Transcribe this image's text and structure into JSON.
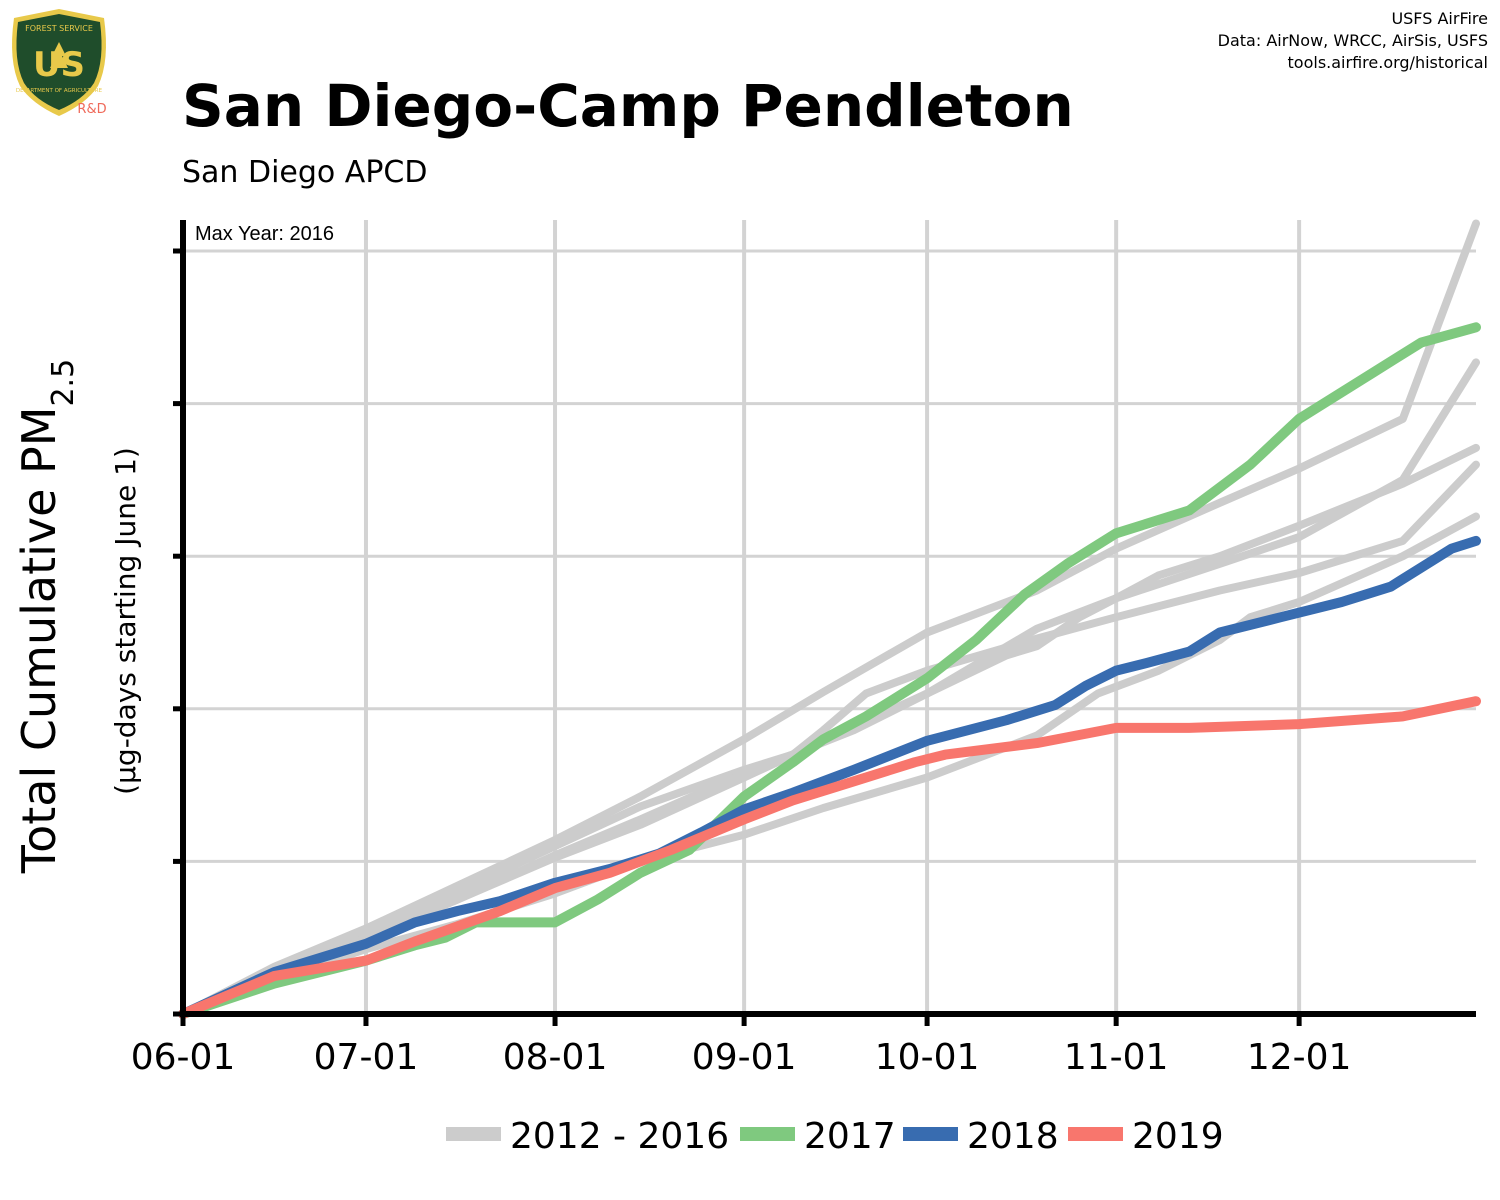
{
  "header": {
    "title": "San Diego-Camp Pendleton",
    "subtitle": "San Diego APCD",
    "credits": [
      "USFS AirFire",
      "Data: AirNow, WRCC, AirSis, USFS",
      "tools.airfire.org/historical"
    ]
  },
  "logo": {
    "top_text": "FOREST SERVICE",
    "letters": "US",
    "bottom_text": "DEPARTMENT OF AGRICULTURE",
    "tag": "R&D",
    "colors": {
      "shield": "#1f4d2b",
      "trim": "#e8c94a",
      "tag": "#ef6a5a"
    }
  },
  "chart_data": {
    "type": "line",
    "title": "San Diego-Camp Pendleton",
    "subtitle": "San Diego APCD",
    "ylabel_main": "Total Cumulative PM",
    "ylabel_sub": "2.5",
    "ylabel_units": "(µg-days starting June 1)",
    "annotation": "Max Year: 2016",
    "x_unit": "days since June 1",
    "xlim": [
      0,
      212
    ],
    "ylim": [
      0,
      1000
    ],
    "y_ticks": [
      0,
      200,
      400,
      600,
      800,
      1000
    ],
    "y_tick_labels_shown": false,
    "x_ticks": [
      {
        "day": 0,
        "label": "06-01"
      },
      {
        "day": 30,
        "label": "07-01"
      },
      {
        "day": 61,
        "label": "08-01"
      },
      {
        "day": 92,
        "label": "09-01"
      },
      {
        "day": 122,
        "label": "10-01"
      },
      {
        "day": 153,
        "label": "11-01"
      },
      {
        "day": 183,
        "label": "12-01"
      }
    ],
    "grid": true,
    "legend_position": "bottom",
    "legend": [
      {
        "label": "2012 - 2016",
        "color": "#cccccc"
      },
      {
        "label": "2017",
        "color": "#7fc97f"
      },
      {
        "label": "2018",
        "color": "#386cb0"
      },
      {
        "label": "2019",
        "color": "#f8766d"
      }
    ],
    "series": [
      {
        "name": "2012 - 2016",
        "color": "#cccccc",
        "points": [
          [
            0,
            0
          ],
          [
            15,
            62
          ],
          [
            30,
            112
          ],
          [
            45,
            168
          ],
          [
            61,
            228
          ],
          [
            75,
            285
          ],
          [
            92,
            360
          ],
          [
            105,
            422
          ],
          [
            122,
            500
          ],
          [
            140,
            555
          ],
          [
            153,
            610
          ],
          [
            170,
            670
          ],
          [
            183,
            715
          ],
          [
            200,
            780
          ],
          [
            212,
            1036
          ]
        ]
      },
      {
        "name": "2012 - 2016",
        "color": "#cccccc",
        "points": [
          [
            0,
            0
          ],
          [
            15,
            55
          ],
          [
            30,
            100
          ],
          [
            45,
            150
          ],
          [
            61,
            205
          ],
          [
            75,
            248
          ],
          [
            92,
            310
          ],
          [
            105,
            358
          ],
          [
            122,
            420
          ],
          [
            140,
            505
          ],
          [
            153,
            545
          ],
          [
            170,
            590
          ],
          [
            183,
            625
          ],
          [
            200,
            700
          ],
          [
            212,
            854
          ]
        ]
      },
      {
        "name": "2012 - 2016",
        "color": "#cccccc",
        "points": [
          [
            0,
            0
          ],
          [
            15,
            58
          ],
          [
            30,
            108
          ],
          [
            45,
            160
          ],
          [
            61,
            220
          ],
          [
            75,
            272
          ],
          [
            92,
            320
          ],
          [
            100,
            340
          ],
          [
            105,
            372
          ],
          [
            112,
            420
          ],
          [
            122,
            450
          ],
          [
            140,
            492
          ],
          [
            153,
            520
          ],
          [
            170,
            555
          ],
          [
            183,
            578
          ],
          [
            200,
            620
          ],
          [
            212,
            720
          ]
        ]
      },
      {
        "name": "2012 - 2016",
        "color": "#cccccc",
        "points": [
          [
            0,
            0
          ],
          [
            15,
            52
          ],
          [
            30,
            100
          ],
          [
            45,
            150
          ],
          [
            61,
            208
          ],
          [
            75,
            255
          ],
          [
            92,
            315
          ],
          [
            110,
            372
          ],
          [
            122,
            420
          ],
          [
            135,
            470
          ],
          [
            140,
            482
          ],
          [
            147,
            520
          ],
          [
            153,
            545
          ],
          [
            160,
            575
          ],
          [
            170,
            600
          ],
          [
            183,
            640
          ],
          [
            200,
            695
          ],
          [
            212,
            742
          ]
        ]
      },
      {
        "name": "2012 - 2016",
        "color": "#cccccc",
        "points": [
          [
            0,
            0
          ],
          [
            15,
            45
          ],
          [
            30,
            85
          ],
          [
            45,
            118
          ],
          [
            61,
            158
          ],
          [
            75,
            200
          ],
          [
            92,
            235
          ],
          [
            105,
            270
          ],
          [
            122,
            310
          ],
          [
            140,
            365
          ],
          [
            150,
            420
          ],
          [
            160,
            450
          ],
          [
            170,
            490
          ],
          [
            175,
            520
          ],
          [
            183,
            540
          ],
          [
            200,
            600
          ],
          [
            212,
            652
          ]
        ]
      },
      {
        "name": "2017",
        "color": "#7fc97f",
        "points": [
          [
            0,
            0
          ],
          [
            15,
            40
          ],
          [
            30,
            70
          ],
          [
            38,
            90
          ],
          [
            43,
            100
          ],
          [
            48,
            120
          ],
          [
            61,
            120
          ],
          [
            68,
            150
          ],
          [
            75,
            185
          ],
          [
            83,
            215
          ],
          [
            92,
            285
          ],
          [
            100,
            330
          ],
          [
            105,
            360
          ],
          [
            112,
            390
          ],
          [
            122,
            440
          ],
          [
            130,
            490
          ],
          [
            138,
            550
          ],
          [
            145,
            590
          ],
          [
            153,
            630
          ],
          [
            165,
            660
          ],
          [
            175,
            720
          ],
          [
            183,
            780
          ],
          [
            195,
            840
          ],
          [
            203,
            880
          ],
          [
            212,
            900
          ]
        ]
      },
      {
        "name": "2018",
        "color": "#386cb0",
        "points": [
          [
            0,
            0
          ],
          [
            15,
            55
          ],
          [
            30,
            92
          ],
          [
            38,
            120
          ],
          [
            45,
            135
          ],
          [
            52,
            148
          ],
          [
            61,
            172
          ],
          [
            70,
            190
          ],
          [
            78,
            210
          ],
          [
            85,
            238
          ],
          [
            92,
            268
          ],
          [
            100,
            290
          ],
          [
            110,
            320
          ],
          [
            122,
            358
          ],
          [
            135,
            385
          ],
          [
            143,
            405
          ],
          [
            148,
            430
          ],
          [
            153,
            450
          ],
          [
            158,
            460
          ],
          [
            165,
            475
          ],
          [
            170,
            500
          ],
          [
            180,
            520
          ],
          [
            190,
            540
          ],
          [
            198,
            560
          ],
          [
            208,
            610
          ],
          [
            212,
            620
          ]
        ]
      },
      {
        "name": "2019",
        "color": "#f8766d",
        "points": [
          [
            0,
            0
          ],
          [
            15,
            50
          ],
          [
            30,
            70
          ],
          [
            38,
            95
          ],
          [
            45,
            115
          ],
          [
            52,
            135
          ],
          [
            61,
            165
          ],
          [
            70,
            185
          ],
          [
            80,
            215
          ],
          [
            92,
            255
          ],
          [
            100,
            280
          ],
          [
            110,
            305
          ],
          [
            120,
            330
          ],
          [
            125,
            340
          ],
          [
            140,
            355
          ],
          [
            153,
            375
          ],
          [
            165,
            375
          ],
          [
            183,
            380
          ],
          [
            200,
            390
          ],
          [
            212,
            410
          ]
        ]
      }
    ]
  }
}
